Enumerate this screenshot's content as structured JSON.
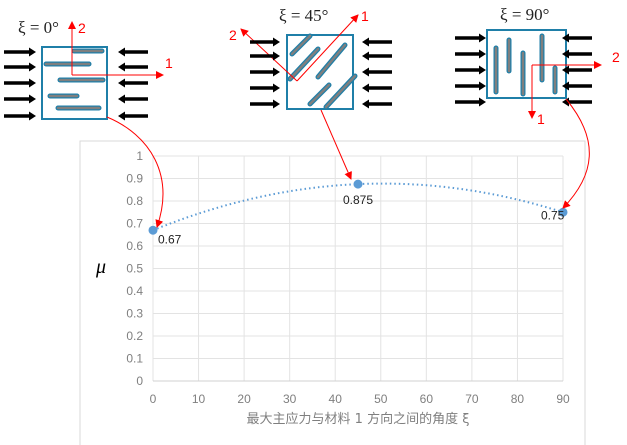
{
  "chart_data": {
    "type": "scatter",
    "title": "",
    "xlabel": "最大主应力与材料 1 方向之间的角度 ξ",
    "ylabel": "μ",
    "xlim": [
      0,
      90
    ],
    "ylim": [
      0,
      1
    ],
    "x_ticks": [
      "0",
      "10",
      "20",
      "30",
      "40",
      "50",
      "60",
      "70",
      "80",
      "90"
    ],
    "y_ticks": [
      "0",
      "0.1",
      "0.2",
      "0.3",
      "0.4",
      "0.5",
      "0.6",
      "0.7",
      "0.8",
      "0.9",
      "1"
    ],
    "grid": true,
    "trendline": "polynomial-2 dotted",
    "series": [
      {
        "x": [
          0,
          45,
          90
        ],
        "y": [
          0.67,
          0.875,
          0.75
        ],
        "labels": [
          "0.67",
          "0.875",
          "0.75"
        ],
        "color": "#5b9bd5"
      }
    ]
  },
  "diagrams": [
    {
      "title": "ξ = 0°",
      "axis1": "1",
      "axis2": "2"
    },
    {
      "title": "ξ = 45°",
      "axis1": "1",
      "axis2": "2"
    },
    {
      "title": "ξ = 90°",
      "axis1": "1",
      "axis2": "2"
    }
  ],
  "colors": {
    "fiber_border": "#1f7fa8",
    "fiber_fill": "#7f7f7f",
    "annotation": "#ff0000",
    "series": "#5b9bd5"
  }
}
